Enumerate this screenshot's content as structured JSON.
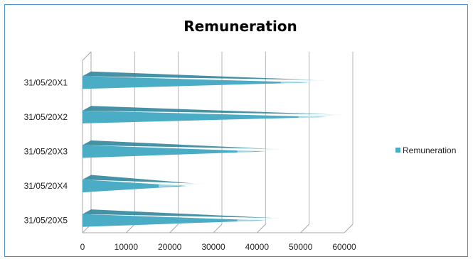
{
  "chart_data": {
    "type": "bar",
    "orientation": "horizontal",
    "title": "Remuneration",
    "categories": [
      "31/05/20X1",
      "31/05/20X2",
      "31/05/20X3",
      "31/05/20X4",
      "31/05/20X5"
    ],
    "series": [
      {
        "name": "Remuneration",
        "values": [
          52000,
          56000,
          42000,
          24000,
          42000
        ]
      }
    ],
    "xlim": [
      0,
      60000
    ],
    "x_ticks": [
      "0",
      "10000",
      "20000",
      "30000",
      "40000",
      "50000",
      "60000"
    ],
    "grid": true,
    "legend_position": "right",
    "color": "#4bacc6"
  }
}
